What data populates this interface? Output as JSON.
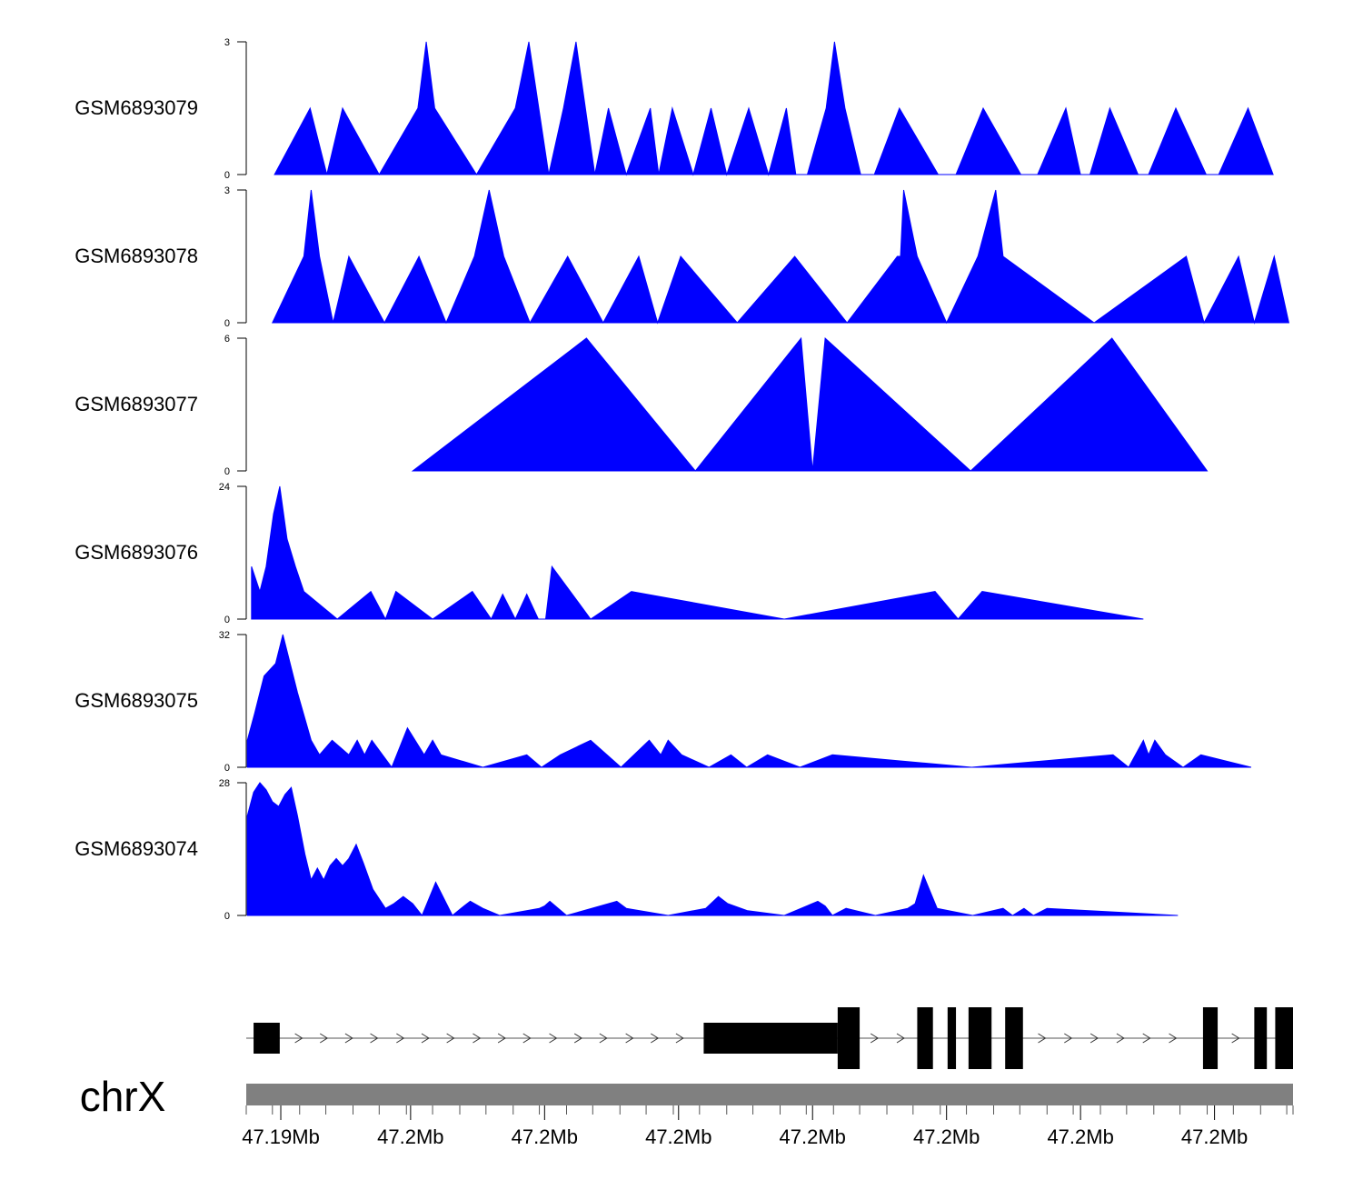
{
  "chart_data": {
    "type": "area",
    "chromosome": "chrX",
    "fill_color": "#0000ff",
    "gene_color": "#000000",
    "ideogram_color": "#808080",
    "position_range": [
      0,
      1
    ],
    "axis_tick_labels": [
      "47.19Mb",
      "47.2Mb",
      "47.2Mb",
      "47.2Mb",
      "47.2Mb",
      "47.2Mb",
      "47.2Mb",
      "47.2Mb"
    ],
    "axis_label_positions": [
      0.033,
      0.157,
      0.285,
      0.413,
      0.541,
      0.669,
      0.797,
      0.925
    ],
    "axis_minor_ticks": [
      0.0,
      0.025,
      0.051,
      0.076,
      0.102,
      0.127,
      0.153,
      0.178,
      0.204,
      0.229,
      0.255,
      0.28,
      0.306,
      0.331,
      0.357,
      0.382,
      0.408,
      0.433,
      0.459,
      0.484,
      0.51,
      0.535,
      0.561,
      0.586,
      0.612,
      0.637,
      0.663,
      0.688,
      0.714,
      0.739,
      0.765,
      0.79,
      0.816,
      0.841,
      0.867,
      0.892,
      0.918,
      0.943,
      0.969,
      0.994,
      1.0
    ],
    "tracks": [
      {
        "name": "GSM6893079",
        "ylim": [
          0,
          3
        ],
        "points": [
          [
            0.027,
            0
          ],
          [
            0.061,
            1.5
          ],
          [
            0.077,
            0
          ],
          [
            0.092,
            1.5
          ],
          [
            0.127,
            0
          ],
          [
            0.164,
            1.5
          ],
          [
            0.172,
            3
          ],
          [
            0.18,
            1.5
          ],
          [
            0.22,
            0
          ],
          [
            0.257,
            1.5
          ],
          [
            0.27,
            3
          ],
          [
            0.289,
            0
          ],
          [
            0.303,
            1.5
          ],
          [
            0.315,
            3
          ],
          [
            0.333,
            0
          ],
          [
            0.346,
            1.5
          ],
          [
            0.363,
            0
          ],
          [
            0.386,
            1.5
          ],
          [
            0.394,
            0
          ],
          [
            0.407,
            1.5
          ],
          [
            0.427,
            0
          ],
          [
            0.444,
            1.5
          ],
          [
            0.459,
            0
          ],
          [
            0.48,
            1.5
          ],
          [
            0.499,
            0
          ],
          [
            0.516,
            1.5
          ],
          [
            0.525,
            0
          ],
          [
            0.536,
            0
          ],
          [
            0.554,
            1.5
          ],
          [
            0.562,
            3
          ],
          [
            0.572,
            1.5
          ],
          [
            0.587,
            0
          ],
          [
            0.6,
            0
          ],
          [
            0.624,
            1.5
          ],
          [
            0.661,
            0
          ],
          [
            0.678,
            0
          ],
          [
            0.704,
            1.5
          ],
          [
            0.74,
            0
          ],
          [
            0.756,
            0
          ],
          [
            0.783,
            1.5
          ],
          [
            0.797,
            0
          ],
          [
            0.806,
            0
          ],
          [
            0.825,
            1.5
          ],
          [
            0.852,
            0
          ],
          [
            0.862,
            0
          ],
          [
            0.888,
            1.5
          ],
          [
            0.917,
            0
          ],
          [
            0.929,
            0
          ],
          [
            0.957,
            1.5
          ],
          [
            0.981,
            0
          ]
        ]
      },
      {
        "name": "GSM6893078",
        "ylim": [
          0,
          3
        ],
        "points": [
          [
            0.025,
            0
          ],
          [
            0.055,
            1.5
          ],
          [
            0.062,
            3
          ],
          [
            0.07,
            1.5
          ],
          [
            0.083,
            0
          ],
          [
            0.098,
            1.5
          ],
          [
            0.132,
            0
          ],
          [
            0.165,
            1.5
          ],
          [
            0.191,
            0
          ],
          [
            0.218,
            1.5
          ],
          [
            0.232,
            3
          ],
          [
            0.246,
            1.5
          ],
          [
            0.271,
            0
          ],
          [
            0.307,
            1.5
          ],
          [
            0.341,
            0
          ],
          [
            0.375,
            1.5
          ],
          [
            0.393,
            0
          ],
          [
            0.415,
            1.5
          ],
          [
            0.469,
            0
          ],
          [
            0.524,
            1.5
          ],
          [
            0.574,
            0
          ],
          [
            0.622,
            1.5
          ],
          [
            0.625,
            1.5
          ],
          [
            0.628,
            3
          ],
          [
            0.641,
            1.5
          ],
          [
            0.669,
            0
          ],
          [
            0.699,
            1.5
          ],
          [
            0.716,
            3
          ],
          [
            0.723,
            1.5
          ],
          [
            0.81,
            0
          ],
          [
            0.898,
            1.5
          ],
          [
            0.915,
            0
          ],
          [
            0.948,
            1.5
          ],
          [
            0.963,
            0
          ],
          [
            0.982,
            1.5
          ],
          [
            0.996,
            0
          ]
        ]
      },
      {
        "name": "GSM6893077",
        "ylim": [
          0,
          6
        ],
        "points": [
          [
            0.159,
            0
          ],
          [
            0.325,
            6
          ],
          [
            0.429,
            0
          ],
          [
            0.53,
            6
          ],
          [
            0.541,
            0
          ],
          [
            0.553,
            6
          ],
          [
            0.692,
            0
          ],
          [
            0.827,
            6
          ],
          [
            0.918,
            0
          ]
        ]
      },
      {
        "name": "GSM6893076",
        "ylim": [
          0,
          24
        ],
        "points": [
          [
            0.005,
            0
          ],
          [
            0.005,
            9.5
          ],
          [
            0.013,
            5
          ],
          [
            0.019,
            9.5
          ],
          [
            0.026,
            19
          ],
          [
            0.032,
            24
          ],
          [
            0.039,
            14.5
          ],
          [
            0.047,
            9.5
          ],
          [
            0.055,
            5
          ],
          [
            0.087,
            0
          ],
          [
            0.119,
            5
          ],
          [
            0.133,
            0
          ],
          [
            0.143,
            5
          ],
          [
            0.178,
            0
          ],
          [
            0.216,
            5
          ],
          [
            0.234,
            0
          ],
          [
            0.245,
            4.5
          ],
          [
            0.257,
            0
          ],
          [
            0.268,
            4.5
          ],
          [
            0.279,
            0
          ],
          [
            0.286,
            0
          ],
          [
            0.292,
            9.5
          ],
          [
            0.329,
            0
          ],
          [
            0.368,
            5
          ],
          [
            0.514,
            0
          ],
          [
            0.658,
            5
          ],
          [
            0.68,
            0
          ],
          [
            0.703,
            5
          ],
          [
            0.857,
            0
          ]
        ]
      },
      {
        "name": "GSM6893075",
        "ylim": [
          0,
          32
        ],
        "points": [
          [
            0.001,
            0
          ],
          [
            0.001,
            6.5
          ],
          [
            0.008,
            13
          ],
          [
            0.017,
            22
          ],
          [
            0.028,
            25
          ],
          [
            0.035,
            32
          ],
          [
            0.049,
            18
          ],
          [
            0.062,
            6.5
          ],
          [
            0.07,
            3
          ],
          [
            0.082,
            6.5
          ],
          [
            0.098,
            3
          ],
          [
            0.106,
            6.5
          ],
          [
            0.113,
            3
          ],
          [
            0.12,
            6.5
          ],
          [
            0.139,
            0
          ],
          [
            0.154,
            9.5
          ],
          [
            0.17,
            3
          ],
          [
            0.178,
            6.5
          ],
          [
            0.186,
            3
          ],
          [
            0.226,
            0
          ],
          [
            0.268,
            3
          ],
          [
            0.282,
            0
          ],
          [
            0.3,
            3
          ],
          [
            0.329,
            6.5
          ],
          [
            0.358,
            0
          ],
          [
            0.385,
            6.5
          ],
          [
            0.396,
            3
          ],
          [
            0.403,
            6.5
          ],
          [
            0.416,
            3
          ],
          [
            0.442,
            0
          ],
          [
            0.463,
            3
          ],
          [
            0.478,
            0
          ],
          [
            0.498,
            3
          ],
          [
            0.529,
            0
          ],
          [
            0.56,
            3
          ],
          [
            0.693,
            0
          ],
          [
            0.828,
            3
          ],
          [
            0.843,
            0
          ],
          [
            0.857,
            6.5
          ],
          [
            0.862,
            3
          ],
          [
            0.868,
            6.5
          ],
          [
            0.878,
            3
          ],
          [
            0.895,
            0
          ],
          [
            0.912,
            3
          ],
          [
            0.96,
            0
          ]
        ]
      },
      {
        "name": "GSM6893074",
        "ylim": [
          0,
          28
        ],
        "points": [
          [
            0.001,
            0
          ],
          [
            0.001,
            21
          ],
          [
            0.007,
            26
          ],
          [
            0.013,
            28
          ],
          [
            0.019,
            26.5
          ],
          [
            0.025,
            24
          ],
          [
            0.031,
            23
          ],
          [
            0.037,
            25.5
          ],
          [
            0.043,
            27
          ],
          [
            0.049,
            21
          ],
          [
            0.056,
            13
          ],
          [
            0.062,
            7.5
          ],
          [
            0.068,
            10
          ],
          [
            0.074,
            7.5
          ],
          [
            0.08,
            10.5
          ],
          [
            0.086,
            12
          ],
          [
            0.092,
            10.5
          ],
          [
            0.098,
            12
          ],
          [
            0.105,
            15
          ],
          [
            0.112,
            11
          ],
          [
            0.121,
            5.5
          ],
          [
            0.133,
            1.5
          ],
          [
            0.141,
            2.5
          ],
          [
            0.15,
            4
          ],
          [
            0.159,
            2.5
          ],
          [
            0.168,
            0
          ],
          [
            0.181,
            7
          ],
          [
            0.197,
            0
          ],
          [
            0.208,
            2
          ],
          [
            0.214,
            3
          ],
          [
            0.226,
            1.5
          ],
          [
            0.242,
            0
          ],
          [
            0.28,
            1.5
          ],
          [
            0.285,
            2
          ],
          [
            0.29,
            3
          ],
          [
            0.306,
            0
          ],
          [
            0.354,
            3
          ],
          [
            0.363,
            1.5
          ],
          [
            0.403,
            0
          ],
          [
            0.439,
            1.5
          ],
          [
            0.451,
            4
          ],
          [
            0.46,
            2.5
          ],
          [
            0.479,
            1
          ],
          [
            0.514,
            0
          ],
          [
            0.546,
            3
          ],
          [
            0.553,
            2
          ],
          [
            0.56,
            0
          ],
          [
            0.573,
            1.5
          ],
          [
            0.601,
            0
          ],
          [
            0.632,
            1.5
          ],
          [
            0.639,
            2.5
          ],
          [
            0.647,
            8.5
          ],
          [
            0.66,
            1.5
          ],
          [
            0.694,
            0
          ],
          [
            0.723,
            1.5
          ],
          [
            0.732,
            0
          ],
          [
            0.743,
            1.5
          ],
          [
            0.752,
            0
          ],
          [
            0.765,
            1.5
          ],
          [
            0.89,
            0
          ]
        ]
      }
    ],
    "gene_model": {
      "strand": "+",
      "line_range": [
        0.0,
        1.0
      ],
      "exons": [
        [
          0.007,
          0.032,
          "utr"
        ],
        [
          0.437,
          0.565,
          "utr"
        ],
        [
          0.565,
          0.586,
          "cds"
        ],
        [
          0.641,
          0.656,
          "cds"
        ],
        [
          0.67,
          0.678,
          "cds"
        ],
        [
          0.69,
          0.712,
          "cds"
        ],
        [
          0.725,
          0.742,
          "cds"
        ],
        [
          0.914,
          0.928,
          "cds"
        ],
        [
          0.963,
          0.975,
          "cds"
        ],
        [
          0.983,
          1.0,
          "cds"
        ]
      ],
      "arrow_positions": [
        0.05,
        0.074,
        0.098,
        0.122,
        0.147,
        0.171,
        0.195,
        0.22,
        0.244,
        0.268,
        0.293,
        0.317,
        0.341,
        0.366,
        0.39,
        0.414,
        0.6,
        0.625,
        0.7,
        0.76,
        0.785,
        0.81,
        0.835,
        0.86,
        0.885,
        0.945
      ]
    }
  }
}
